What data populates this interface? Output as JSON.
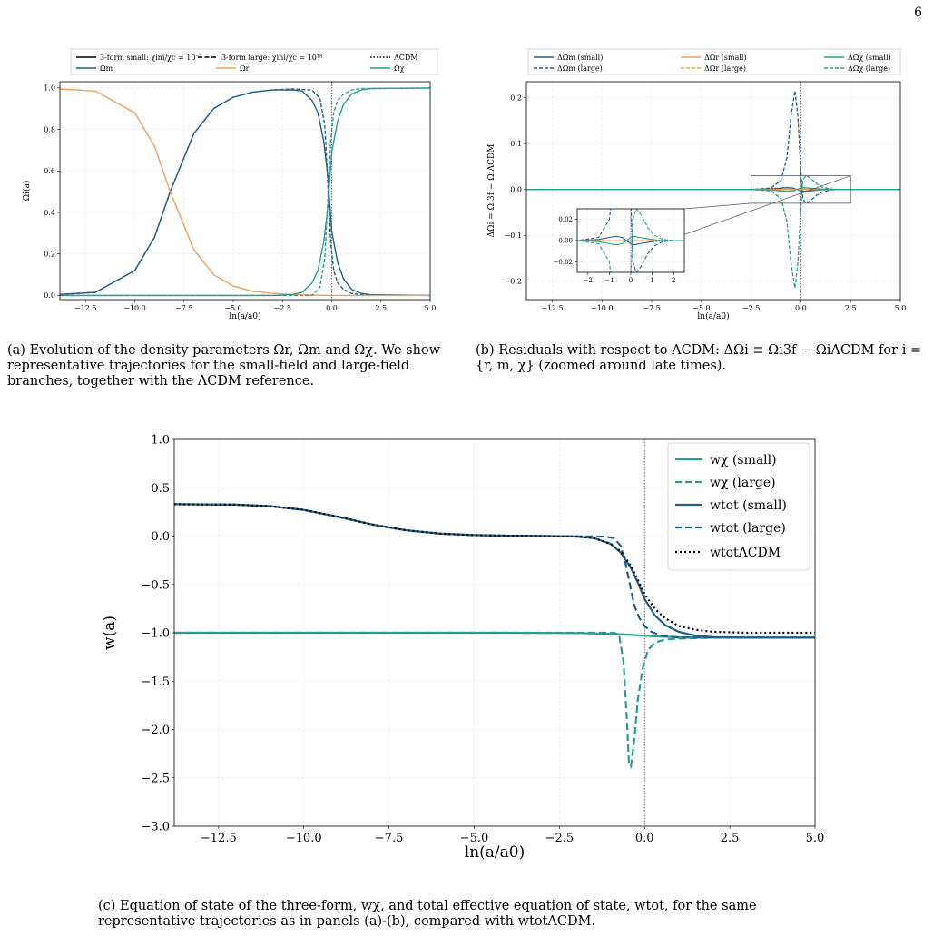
{
  "page_number": "6",
  "captions": {
    "a": "(a) Evolution of the density parameters Ωr, Ωm and Ωχ. We show representative trajectories for the small-field and large-field branches, together with the ΛCDM reference.",
    "b": "(b) Residuals with respect to ΛCDM: ΔΩi ≡ Ωi3f − ΩiΛCDM for i = {r, m, χ} (zoomed around late times).",
    "c": "(c) Equation of state of the three-form, wχ, and total effective equation of state, wtot, for the same representative trajectories as in panels (a)-(b), compared with wtotΛCDM."
  },
  "colors": {
    "m": "#1f5f8b",
    "r": "#f0a05a",
    "chi": "#2a9d8f",
    "lcdm": "#000000"
  },
  "chart_data": [
    {
      "type": "line",
      "panel": "a",
      "xlabel": "ln(a/a0)",
      "ylabel": "Ωi(a)",
      "xlim": [
        -13.8,
        5.0
      ],
      "ylim": [
        -0.02,
        1.03
      ],
      "xticks": [
        "-12.5",
        "-10.0",
        "-7.5",
        "-5.0",
        "-2.5",
        "0.0",
        "2.5",
        "5.0"
      ],
      "yticks": [
        "0.0",
        "0.2",
        "0.4",
        "0.6",
        "0.8",
        "1.0"
      ],
      "legend": [
        "3-form small: χini/χc = 10⁻¹",
        "3-form large: χini/χc = 10¹⁸",
        "ΛCDM",
        "Ωm",
        "Ωr",
        "Ωχ"
      ],
      "series": [
        {
          "name": "Ωm",
          "style": "small",
          "x": [
            -13.8,
            -12,
            -10,
            -9,
            -8.2,
            -7,
            -6,
            -5,
            -4,
            -3,
            -2,
            -1.5,
            -1,
            -0.7,
            -0.4,
            -0.2,
            0,
            0.3,
            0.6,
            1,
            1.5,
            2,
            5
          ],
          "y": [
            0.005,
            0.015,
            0.12,
            0.28,
            0.5,
            0.78,
            0.9,
            0.955,
            0.98,
            0.99,
            0.99,
            0.985,
            0.94,
            0.88,
            0.74,
            0.58,
            0.31,
            0.16,
            0.08,
            0.03,
            0.01,
            0.003,
            0
          ]
        },
        {
          "name": "Ωm",
          "style": "large",
          "x": [
            -13.8,
            -12,
            -10,
            -9,
            -8.2,
            -7,
            -6,
            -5,
            -4,
            -3,
            -2,
            -1,
            -0.6,
            -0.35,
            -0.2,
            -0.05,
            0.1,
            0.3,
            0.6,
            1,
            1.5,
            5
          ],
          "y": [
            0.005,
            0.015,
            0.12,
            0.28,
            0.5,
            0.78,
            0.9,
            0.955,
            0.98,
            0.99,
            0.995,
            0.99,
            0.95,
            0.82,
            0.55,
            0.25,
            0.12,
            0.06,
            0.03,
            0.01,
            0.003,
            0
          ]
        },
        {
          "name": "Ωr",
          "style": "small",
          "x": [
            -13.8,
            -12,
            -10,
            -9,
            -8.2,
            -7,
            -6,
            -5,
            -4,
            -3,
            -2,
            0,
            5
          ],
          "y": [
            0.995,
            0.985,
            0.88,
            0.72,
            0.5,
            0.22,
            0.1,
            0.045,
            0.02,
            0.01,
            0.004,
            0,
            0
          ]
        },
        {
          "name": "Ωχ",
          "style": "small",
          "x": [
            -13.8,
            -4,
            -3,
            -2,
            -1.5,
            -1,
            -0.7,
            -0.4,
            -0.2,
            0,
            0.3,
            0.6,
            1,
            1.5,
            2,
            5
          ],
          "y": [
            0,
            0,
            0,
            0.005,
            0.015,
            0.06,
            0.12,
            0.26,
            0.42,
            0.69,
            0.84,
            0.92,
            0.97,
            0.99,
            0.997,
            1.0
          ]
        },
        {
          "name": "Ωχ",
          "style": "large",
          "x": [
            -13.8,
            -1,
            -0.6,
            -0.35,
            -0.2,
            -0.05,
            0.1,
            0.3,
            0.6,
            1,
            1.5,
            5
          ],
          "y": [
            0,
            0,
            0.04,
            0.18,
            0.45,
            0.75,
            0.88,
            0.94,
            0.97,
            0.99,
            0.997,
            1.0
          ]
        }
      ]
    },
    {
      "type": "line",
      "panel": "b",
      "xlabel": "ln(a/a0)",
      "ylabel": "ΔΩi = Ωi3f − ΩiΛCDM",
      "xlim": [
        -13.8,
        5.0
      ],
      "ylim": [
        -0.24,
        0.235
      ],
      "xticks": [
        "-12.5",
        "-10.0",
        "-7.5",
        "-5.0",
        "-2.5",
        "0.0",
        "2.5",
        "5.0"
      ],
      "yticks": [
        "-0.2",
        "-0.1",
        "0.0",
        "0.1",
        "0.2"
      ],
      "legend": [
        "ΔΩm (small)",
        "ΔΩm (large)",
        "ΔΩr (small)",
        "ΔΩr (large)",
        "ΔΩχ (small)",
        "ΔΩχ (large)"
      ],
      "inset": {
        "xlim": [
          -2.5,
          2.5
        ],
        "ylim": [
          -0.03,
          0.03
        ],
        "xticks": [
          "-2",
          "-1",
          "0",
          "1",
          "2"
        ],
        "yticks": [
          "-0.02",
          "0.00",
          "0.02"
        ]
      },
      "series": [
        {
          "name": "ΔΩm (small)",
          "style": "solid",
          "color": "m",
          "x": [
            -13.8,
            -2.5,
            -1.5,
            -1,
            -0.7,
            -0.4,
            -0.2,
            0,
            0.2,
            0.4,
            0.7,
            1,
            1.5,
            2,
            5
          ],
          "y": [
            0,
            0,
            0.001,
            0.003,
            0.004,
            0.003,
            0,
            -0.003,
            -0.004,
            -0.003,
            -0.002,
            -0.001,
            0,
            0,
            0
          ]
        },
        {
          "name": "ΔΩm (large)",
          "style": "dashed",
          "color": "m",
          "x": [
            -13.8,
            -2.5,
            -1.5,
            -1,
            -0.7,
            -0.5,
            -0.3,
            -0.15,
            0,
            0.1,
            0.25,
            0.4,
            0.6,
            0.8,
            1.1,
            1.5,
            2,
            5
          ],
          "y": [
            0,
            0,
            0.003,
            0.02,
            0.07,
            0.16,
            0.215,
            0.16,
            0.04,
            -0.02,
            -0.03,
            -0.027,
            -0.02,
            -0.012,
            -0.005,
            -0.001,
            0,
            0
          ]
        },
        {
          "name": "ΔΩr (small)",
          "style": "solid",
          "color": "r",
          "x": [
            -13.8,
            5
          ],
          "y": [
            0,
            0
          ]
        },
        {
          "name": "ΔΩr (large)",
          "style": "dashed",
          "color": "r",
          "x": [
            -13.8,
            5
          ],
          "y": [
            0,
            0
          ]
        },
        {
          "name": "ΔΩχ (small)",
          "style": "solid",
          "color": "chi",
          "x": [
            -13.8,
            -2.5,
            -1.5,
            -1,
            -0.7,
            -0.4,
            -0.2,
            0,
            0.2,
            0.4,
            0.7,
            1,
            1.5,
            2,
            5
          ],
          "y": [
            0,
            0,
            -0.001,
            -0.003,
            -0.004,
            -0.003,
            0,
            0.003,
            0.004,
            0.003,
            0.002,
            0.001,
            0,
            0,
            0
          ]
        },
        {
          "name": "ΔΩχ (large)",
          "style": "dashed",
          "color": "chi",
          "x": [
            -13.8,
            -2.5,
            -1.5,
            -1,
            -0.7,
            -0.5,
            -0.3,
            -0.15,
            0,
            0.1,
            0.25,
            0.4,
            0.6,
            0.8,
            1.1,
            1.5,
            2,
            5
          ],
          "y": [
            0,
            0,
            -0.003,
            -0.02,
            -0.07,
            -0.16,
            -0.215,
            -0.16,
            -0.04,
            0.02,
            0.03,
            0.027,
            0.02,
            0.012,
            0.005,
            0.001,
            0,
            0
          ]
        }
      ]
    },
    {
      "type": "line",
      "panel": "c",
      "xlabel": "ln(a/a0)",
      "ylabel": "w(a)",
      "xlim": [
        -13.8,
        5.0
      ],
      "ylim": [
        -3.0,
        1.0
      ],
      "xticks": [
        "-12.5",
        "-10.0",
        "-7.5",
        "-5.0",
        "-2.5",
        "0.0",
        "2.5",
        "5.0"
      ],
      "yticks": [
        "1.0",
        "0.5",
        "0.0",
        "-0.5",
        "-1.0",
        "-1.5",
        "-2.0",
        "-2.5",
        "-3.0"
      ],
      "legend": [
        "wχ (small)",
        "wχ (large)",
        "wtot (small)",
        "wtot (large)",
        "wtotΛCDM"
      ],
      "series": [
        {
          "name": "wχ (small)",
          "style": "solid",
          "color": "chi",
          "x": [
            -13.8,
            -4,
            -2,
            -1,
            -0.5,
            0,
            0.5,
            1,
            2,
            3,
            5
          ],
          "y": [
            -1,
            -1,
            -1.003,
            -1.01,
            -1.02,
            -1.03,
            -1.04,
            -1.045,
            -1.048,
            -1.05,
            -1.05
          ]
        },
        {
          "name": "wχ (large)",
          "style": "dashed",
          "color": "chi",
          "x": [
            -13.8,
            -1.2,
            -0.9,
            -0.75,
            -0.62,
            -0.52,
            -0.46,
            -0.4,
            -0.3,
            -0.2,
            -0.05,
            0.1,
            0.3,
            0.6,
            1,
            1.5,
            2,
            3,
            5
          ],
          "y": [
            -1,
            -1,
            -1.0,
            -1.02,
            -1.3,
            -1.9,
            -2.35,
            -2.38,
            -2.1,
            -1.7,
            -1.35,
            -1.18,
            -1.1,
            -1.07,
            -1.06,
            -1.055,
            -1.05,
            -1.05,
            -1.05
          ]
        },
        {
          "name": "wtot (small)",
          "style": "solid",
          "color": "m",
          "x": [
            -13.8,
            -12,
            -11,
            -10,
            -9,
            -8,
            -7,
            -6,
            -5,
            -4,
            -3,
            -2,
            -1.5,
            -1,
            -0.7,
            -0.4,
            -0.2,
            0,
            0.3,
            0.6,
            1,
            1.5,
            2,
            3,
            5
          ],
          "y": [
            0.33,
            0.325,
            0.31,
            0.27,
            0.2,
            0.12,
            0.06,
            0.025,
            0.01,
            0.004,
            0.001,
            -0.005,
            -0.02,
            -0.08,
            -0.17,
            -0.33,
            -0.48,
            -0.65,
            -0.82,
            -0.92,
            -0.99,
            -1.03,
            -1.045,
            -1.05,
            -1.05
          ]
        },
        {
          "name": "wtot (large)",
          "style": "dashed",
          "color": "m",
          "x": [
            -13.8,
            -12,
            -11,
            -10,
            -9,
            -8,
            -7,
            -6,
            -5,
            -4,
            -3,
            -2,
            -1.2,
            -0.9,
            -0.7,
            -0.55,
            -0.4,
            -0.3,
            -0.15,
            0,
            0.2,
            0.5,
            1,
            2,
            3,
            5
          ],
          "y": [
            0.33,
            0.325,
            0.31,
            0.27,
            0.2,
            0.12,
            0.06,
            0.025,
            0.01,
            0.004,
            0.001,
            -0.002,
            -0.005,
            -0.02,
            -0.1,
            -0.3,
            -0.55,
            -0.72,
            -0.85,
            -0.93,
            -0.99,
            -1.03,
            -1.05,
            -1.05,
            -1.05,
            -1.05
          ]
        },
        {
          "name": "wtotΛCDM",
          "style": "dotted",
          "color": "lcdm",
          "x": [
            -13.8,
            -12,
            -11,
            -10,
            -9,
            -8,
            -7,
            -6,
            -5,
            -4,
            -3,
            -2,
            -1.5,
            -1,
            -0.7,
            -0.4,
            -0.2,
            0,
            0.3,
            0.6,
            1,
            1.5,
            2,
            3,
            5
          ],
          "y": [
            0.33,
            0.325,
            0.31,
            0.27,
            0.2,
            0.12,
            0.06,
            0.025,
            0.01,
            0.004,
            0.001,
            -0.005,
            -0.02,
            -0.08,
            -0.16,
            -0.31,
            -0.45,
            -0.6,
            -0.75,
            -0.85,
            -0.93,
            -0.97,
            -0.99,
            -1.0,
            -1.0
          ]
        }
      ]
    }
  ]
}
